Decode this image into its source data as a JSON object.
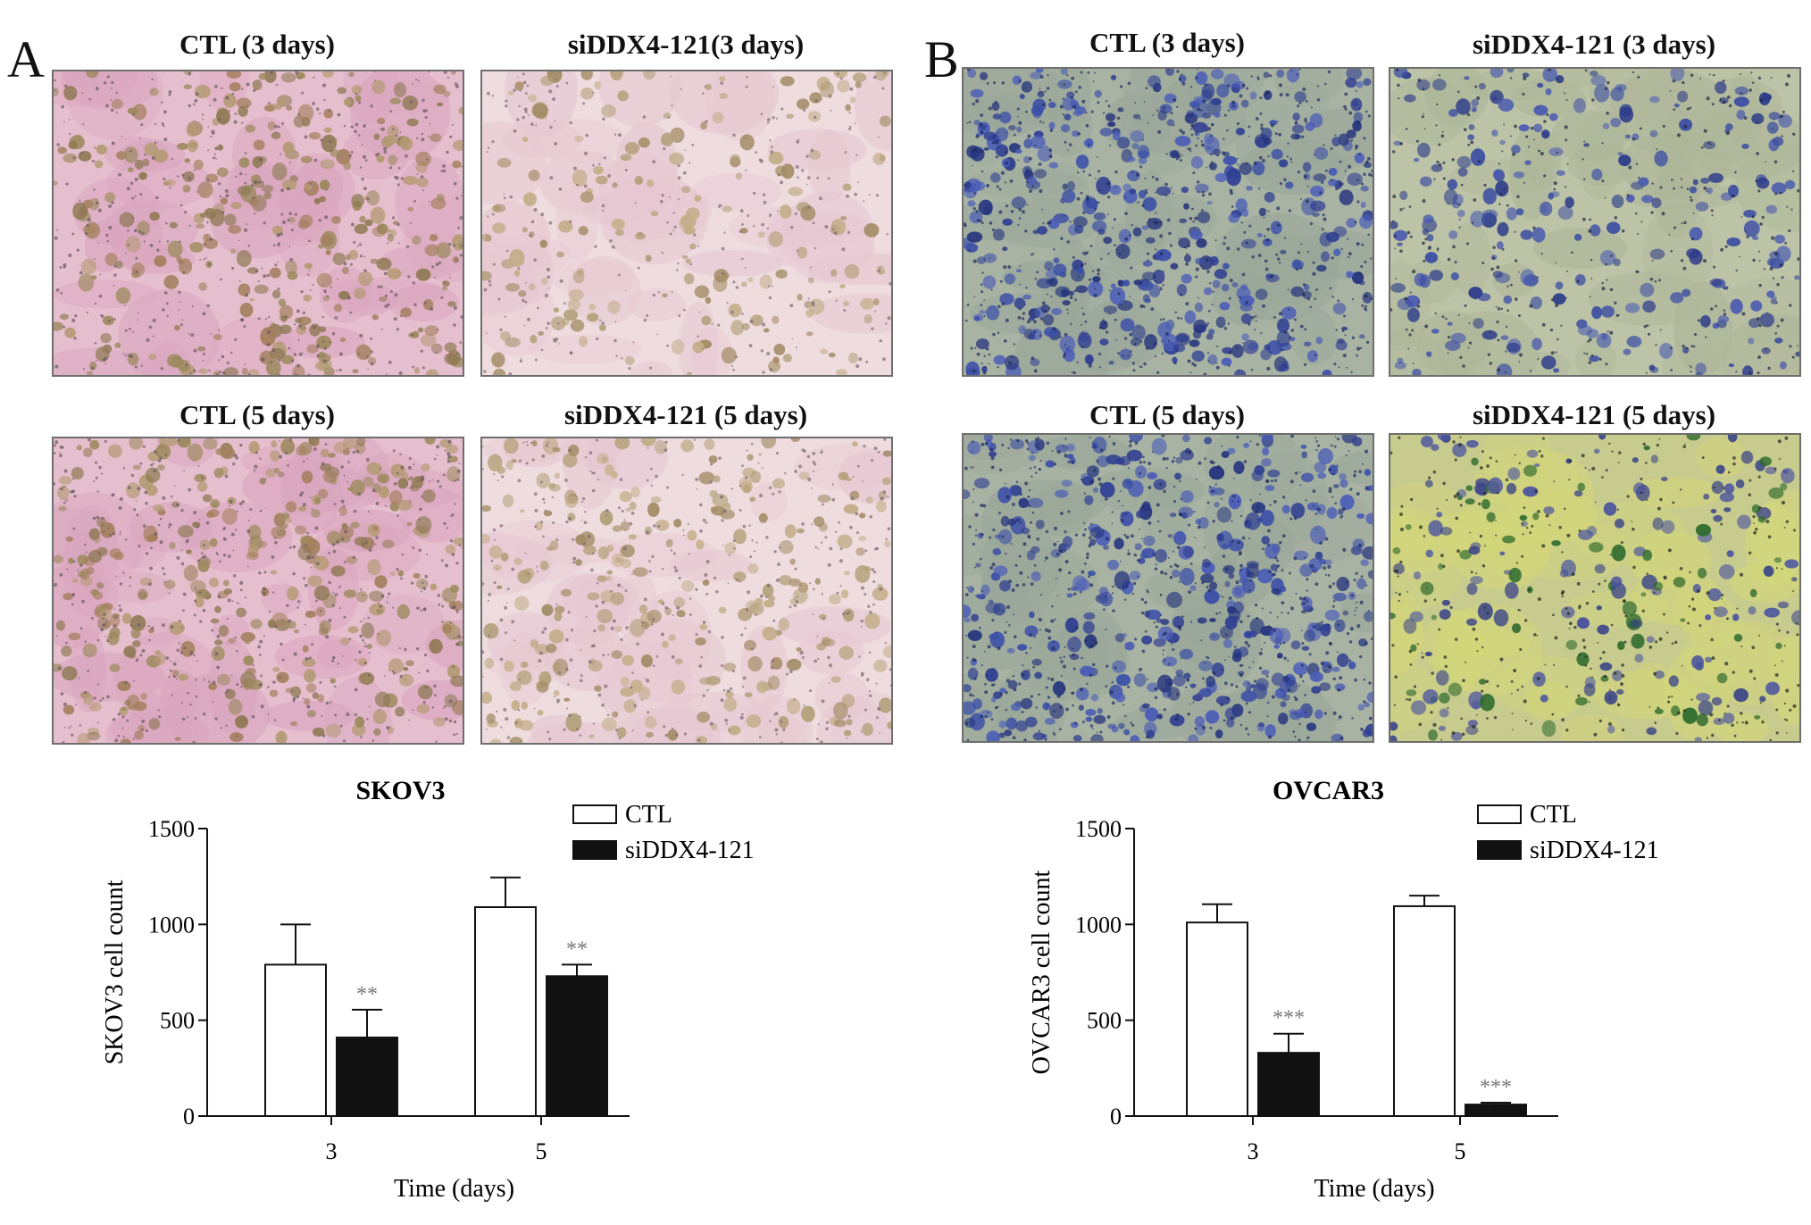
{
  "panels": [
    {
      "letter": "A",
      "image_titles": [
        "CTL (3 days)",
        "siDDX4-121(3 days)",
        "CTL (5 days)",
        "siDDX4-121 (5 days)"
      ],
      "image_style": "pink"
    },
    {
      "letter": "B",
      "image_titles": [
        "CTL (3 days)",
        "siDDX4-121 (3 days)",
        "CTL (5 days)",
        "siDDX4-121 (5 days)"
      ],
      "image_style": "blue"
    }
  ],
  "chart_data": [
    {
      "type": "bar",
      "title": "SKOV3",
      "xlabel": "Time (days)",
      "ylabel": "SKOV3 cell count",
      "categories": [
        "3",
        "5"
      ],
      "ylim": [
        0,
        1500
      ],
      "yticks": [
        "0",
        "500",
        "1000",
        "1500"
      ],
      "series": [
        {
          "name": "CTL",
          "values": [
            790,
            1090
          ],
          "errors": [
            210,
            155
          ],
          "color": "#ffffff"
        },
        {
          "name": "siDDX4-121",
          "values": [
            410,
            730
          ],
          "errors": [
            145,
            60
          ],
          "color": "#111111"
        }
      ],
      "annotations": [
        {
          "series": 1,
          "category": 0,
          "text": "**"
        },
        {
          "series": 1,
          "category": 1,
          "text": "**"
        }
      ],
      "legend": "top-right",
      "grid": false
    },
    {
      "type": "bar",
      "title": "OVCAR3",
      "xlabel": "Time (days)",
      "ylabel": "OVCAR3 cell count",
      "categories": [
        "3",
        "5"
      ],
      "ylim": [
        0,
        1500
      ],
      "yticks": [
        "0",
        "500",
        "1000",
        "1500"
      ],
      "series": [
        {
          "name": "CTL",
          "values": [
            1010,
            1095
          ],
          "errors": [
            95,
            55
          ],
          "color": "#ffffff"
        },
        {
          "name": "siDDX4-121",
          "values": [
            330,
            60
          ],
          "errors": [
            100,
            10
          ],
          "color": "#111111"
        }
      ],
      "annotations": [
        {
          "series": 1,
          "category": 0,
          "text": "***"
        },
        {
          "series": 1,
          "category": 1,
          "text": "***"
        }
      ],
      "legend": "top-right",
      "grid": false
    }
  ]
}
